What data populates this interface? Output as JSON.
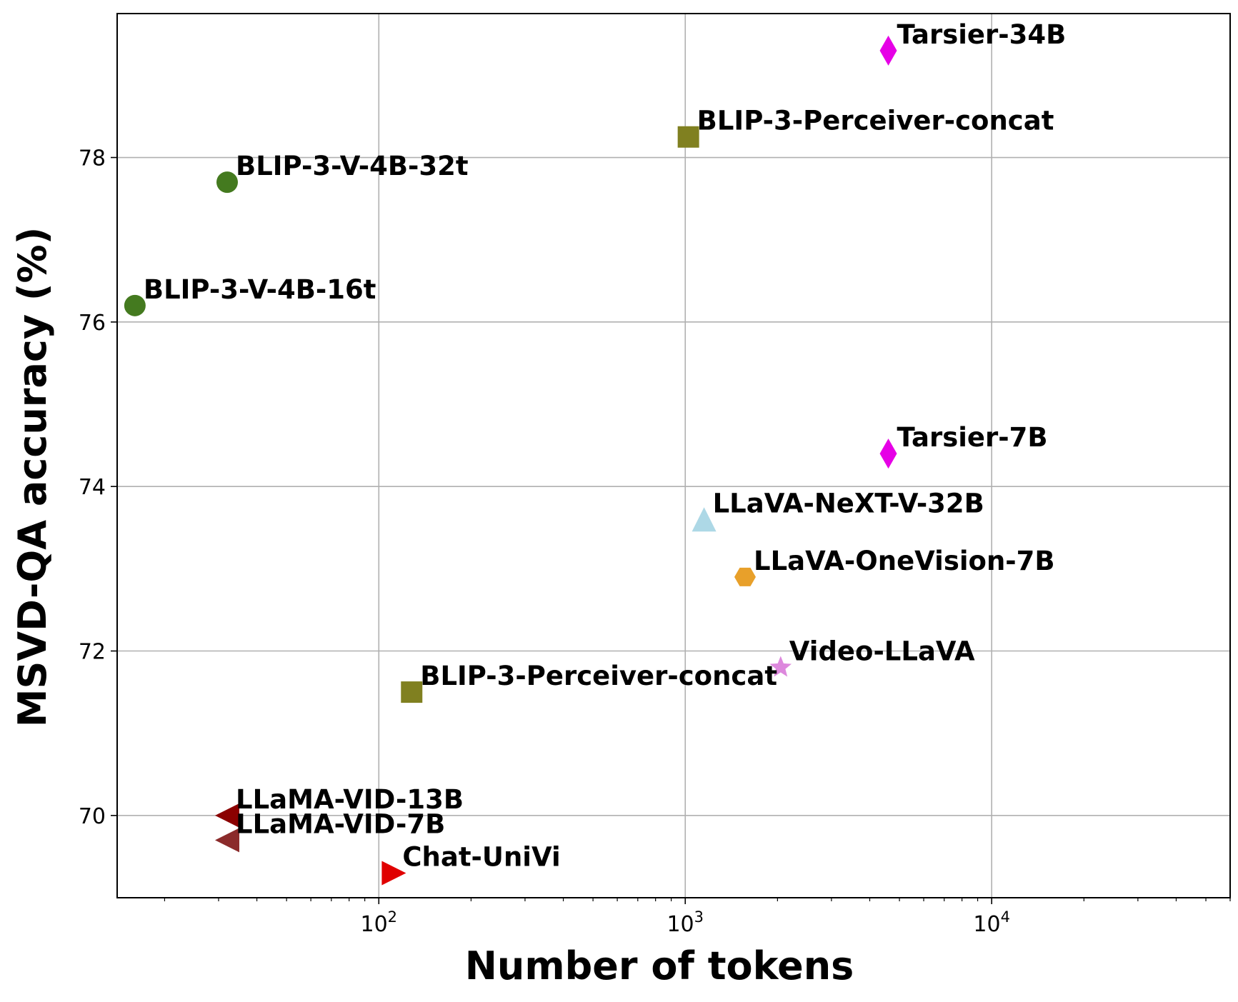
{
  "chart_data": {
    "type": "scatter",
    "title": "",
    "xlabel": "Number of tokens",
    "ylabel": "MSVD-QA accuracy (%)",
    "x_scale": "log",
    "xlim": [
      14,
      60000
    ],
    "ylim": [
      69.0,
      79.75
    ],
    "grid": true,
    "x_ticks": [
      {
        "value": 100,
        "base": "10",
        "exp": "2"
      },
      {
        "value": 1000,
        "base": "10",
        "exp": "3"
      },
      {
        "value": 10000,
        "base": "10",
        "exp": "4"
      }
    ],
    "y_ticks": [
      70,
      72,
      74,
      76,
      78
    ],
    "points": [
      {
        "label": "Tarsier-34B",
        "x": 4600,
        "y": 79.3,
        "marker": "diamond",
        "color": "#e600e6"
      },
      {
        "label": "BLIP-3-Perceiver-concat",
        "x": 1024,
        "y": 78.25,
        "marker": "square",
        "color": "#808020"
      },
      {
        "label": "BLIP-3-V-4B-32t",
        "x": 32,
        "y": 77.7,
        "marker": "circle",
        "color": "#447a1f"
      },
      {
        "label": "BLIP-3-V-4B-16t",
        "x": 16,
        "y": 76.2,
        "marker": "circle",
        "color": "#447a1f"
      },
      {
        "label": "Tarsier-7B",
        "x": 4600,
        "y": 74.4,
        "marker": "diamond",
        "color": "#e600e6"
      },
      {
        "label": "LLaVA-NeXT-V-32B",
        "x": 1152,
        "y": 73.6,
        "marker": "triangle-up",
        "color": "#add8e6"
      },
      {
        "label": "LLaVA-OneVision-7B",
        "x": 1568,
        "y": 72.9,
        "marker": "hexagon",
        "color": "#e8a02a"
      },
      {
        "label": "Video-LLaVA",
        "x": 2048,
        "y": 71.8,
        "marker": "star",
        "color": "#dd88dd"
      },
      {
        "label": "BLIP-3-Perceiver-concat",
        "x": 128,
        "y": 71.5,
        "marker": "square",
        "color": "#808020"
      },
      {
        "label": "LLaMA-VID-13B",
        "x": 32,
        "y": 70.0,
        "marker": "triangle-left",
        "color": "#8b0000"
      },
      {
        "label": "LLaMA-VID-7B",
        "x": 32,
        "y": 69.7,
        "marker": "triangle-left",
        "color": "#8b2b2b"
      },
      {
        "label": "Chat-UniVi",
        "x": 112,
        "y": 69.3,
        "marker": "triangle-right",
        "color": "#e00000"
      }
    ]
  }
}
